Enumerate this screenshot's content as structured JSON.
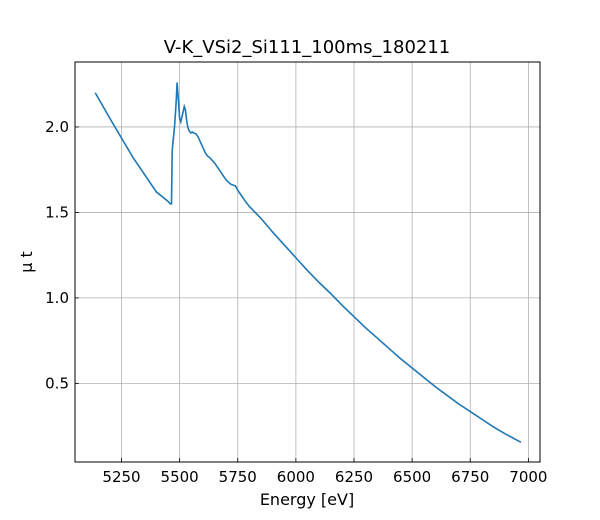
{
  "chart_data": {
    "type": "line",
    "title": "V-K_VSi2_Si111_100ms_180211",
    "xlabel": "Energy [eV]",
    "ylabel": "μ t",
    "xlim": [
      5050,
      7050
    ],
    "ylim": [
      0.04,
      2.38
    ],
    "xticks": [
      5250,
      5500,
      5750,
      6000,
      6250,
      6500,
      6750,
      7000
    ],
    "yticks": [
      0.5,
      1.0,
      1.5,
      2.0
    ],
    "xtick_labels": [
      "5250",
      "5500",
      "5750",
      "6000",
      "6250",
      "6500",
      "6750",
      "7000"
    ],
    "ytick_labels": [
      "0.5",
      "1.0",
      "1.5",
      "2.0"
    ],
    "grid": true,
    "line_color": "#1f77b4",
    "series": [
      {
        "x": [
          5137,
          5200,
          5300,
          5400,
          5450,
          5460,
          5463,
          5465,
          5468,
          5472,
          5478,
          5482,
          5486,
          5489,
          5494,
          5500,
          5505,
          5512,
          5520,
          5525,
          5530,
          5535,
          5540,
          5548,
          5555,
          5560,
          5570,
          5580,
          5590,
          5600,
          5610,
          5620,
          5630,
          5650,
          5670,
          5690,
          5700,
          5720,
          5740,
          5750,
          5760,
          5780,
          5800,
          5825,
          5850,
          5875,
          5900,
          5950,
          6000,
          6050,
          6100,
          6150,
          6200,
          6250,
          6300,
          6350,
          6400,
          6450,
          6500,
          6550,
          6600,
          6650,
          6700,
          6750,
          6800,
          6850,
          6900,
          6968
        ],
        "y": [
          2.2,
          2.05,
          1.82,
          1.62,
          1.565,
          1.55,
          1.55,
          1.55,
          1.86,
          1.92,
          2.0,
          2.08,
          2.17,
          2.26,
          2.17,
          2.05,
          2.03,
          2.07,
          2.12,
          2.1,
          2.04,
          2.0,
          1.98,
          1.965,
          1.97,
          1.965,
          1.96,
          1.94,
          1.91,
          1.88,
          1.85,
          1.83,
          1.82,
          1.79,
          1.75,
          1.71,
          1.69,
          1.665,
          1.655,
          1.63,
          1.61,
          1.57,
          1.535,
          1.5,
          1.465,
          1.425,
          1.385,
          1.31,
          1.235,
          1.16,
          1.09,
          1.025,
          0.955,
          0.89,
          0.825,
          0.765,
          0.705,
          0.645,
          0.59,
          0.535,
          0.48,
          0.43,
          0.38,
          0.335,
          0.29,
          0.245,
          0.205,
          0.155
        ]
      }
    ]
  }
}
